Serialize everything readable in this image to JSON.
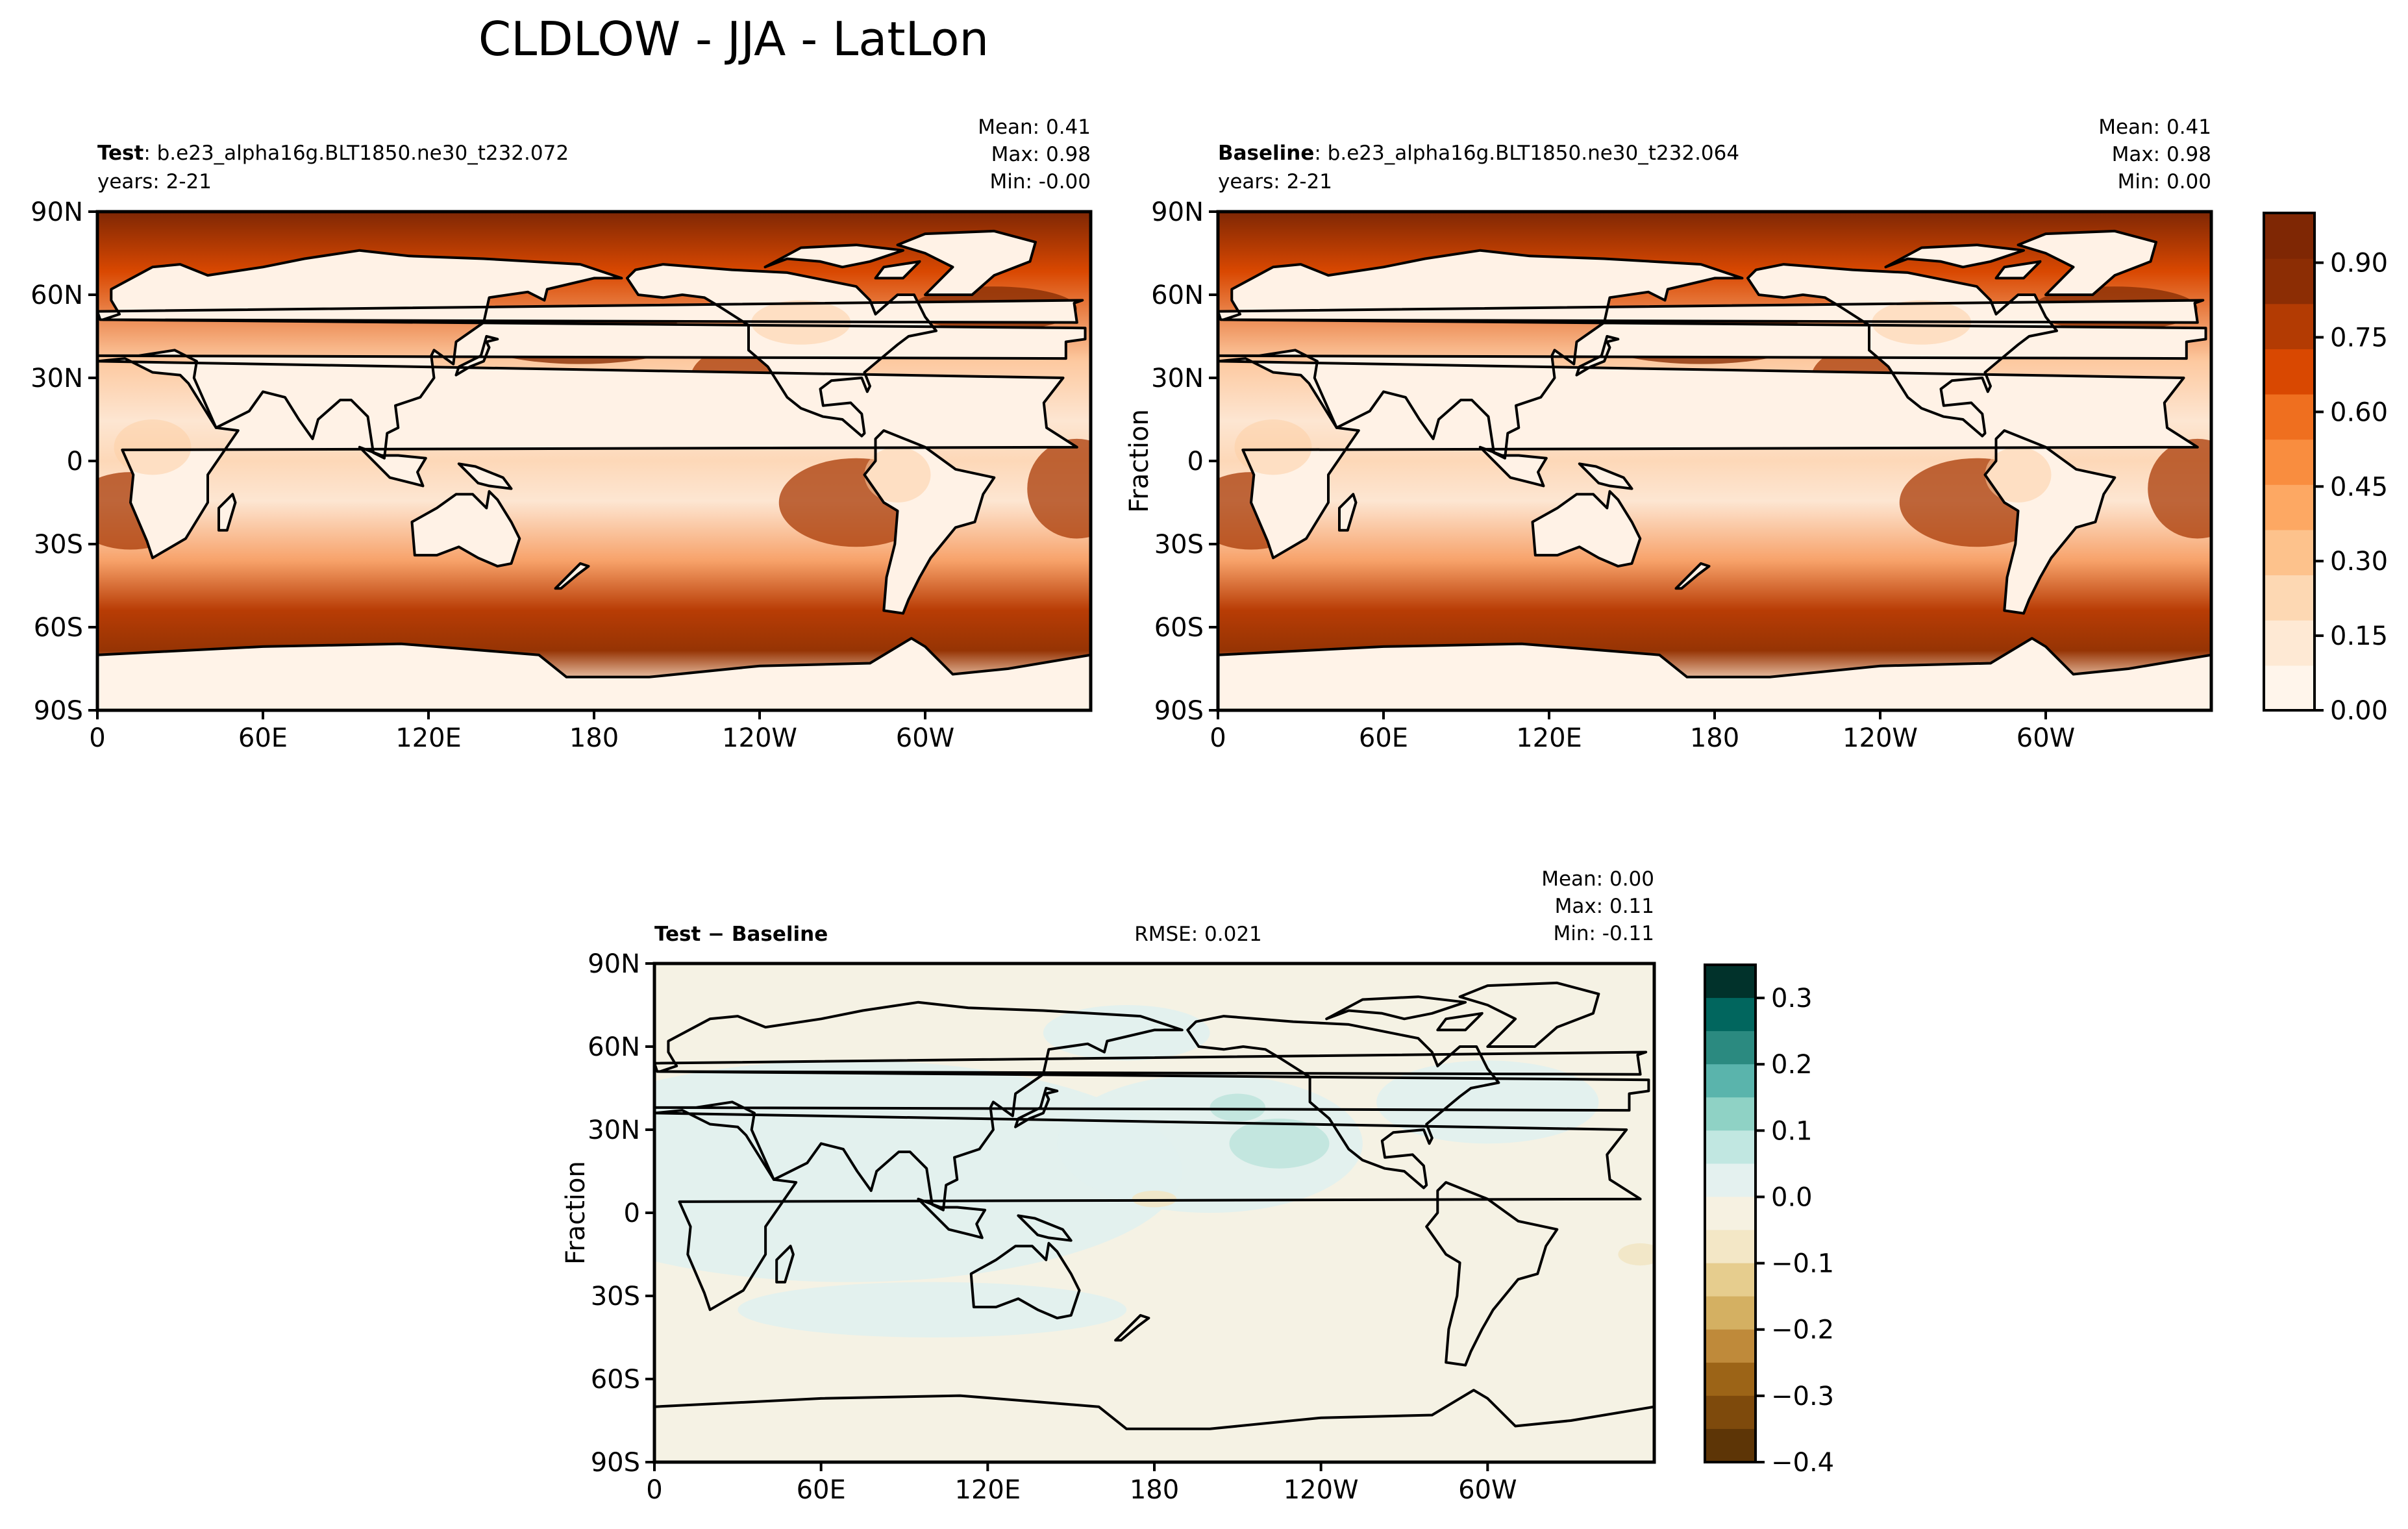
{
  "figure_title": "CLDLOW - JJA - LatLon",
  "chart_data": [
    {
      "type": "heatmap",
      "id": "test",
      "label_bold": "Test",
      "label_rest": ": b.e23_alpha16g.BLT1850.ne30_t232.072",
      "years": "years: 2-21",
      "stats": [
        "Mean:  0.41",
        "Max:  0.98",
        "Min: -0.00"
      ],
      "ylabel": "",
      "xticks": [
        "0",
        "60E",
        "120E",
        "180",
        "120W",
        "60W"
      ],
      "yticks": [
        "90N",
        "60N",
        "30N",
        "0",
        "30S",
        "60S",
        "90S"
      ],
      "xlim": [
        0,
        360
      ],
      "ylim": [
        -90,
        90
      ],
      "colormap": "Oranges",
      "value_range": [
        0,
        1
      ]
    },
    {
      "type": "heatmap",
      "id": "baseline",
      "label_bold": "Baseline",
      "label_rest": ": b.e23_alpha16g.BLT1850.ne30_t232.064",
      "years": "years: 2-21",
      "stats": [
        "Mean:  0.41",
        "Max:  0.98",
        "Min:  0.00"
      ],
      "ylabel": "Fraction",
      "xticks": [
        "0",
        "60E",
        "120E",
        "180",
        "120W",
        "60W"
      ],
      "yticks": [
        "90N",
        "60N",
        "30N",
        "0",
        "30S",
        "60S",
        "90S"
      ],
      "xlim": [
        0,
        360
      ],
      "ylim": [
        -90,
        90
      ],
      "colormap": "Oranges",
      "value_range": [
        0,
        1
      ]
    },
    {
      "type": "heatmap",
      "id": "diff",
      "label_bold": "Test − Baseline",
      "rmse": "RMSE: 0.021",
      "stats": [
        "Mean:  0.00",
        "Max:  0.11",
        "Min: -0.11"
      ],
      "ylabel": "Fraction",
      "xticks": [
        "0",
        "60E",
        "120E",
        "180",
        "120W",
        "60W"
      ],
      "yticks": [
        "90N",
        "60N",
        "30N",
        "0",
        "30S",
        "60S",
        "90S"
      ],
      "xlim": [
        0,
        360
      ],
      "ylim": [
        -90,
        90
      ],
      "colormap": "BrBG",
      "value_range": [
        -0.4,
        0.35
      ]
    }
  ],
  "colorbars": {
    "top": {
      "ticks": [
        "0.00",
        "0.15",
        "0.30",
        "0.45",
        "0.60",
        "0.75",
        "0.90"
      ],
      "tick_values": [
        0.0,
        0.15,
        0.3,
        0.45,
        0.6,
        0.75,
        0.9
      ],
      "range": [
        0,
        1
      ],
      "colors": [
        "#fff5eb",
        "#fee9d4",
        "#fdd8b3",
        "#fdc28c",
        "#fda863",
        "#f98d3f",
        "#ef6f1f",
        "#d94801",
        "#b33b03",
        "#8c2d04",
        "#7f2704"
      ]
    },
    "diff": {
      "ticks": [
        "0.3",
        "0.2",
        "0.1",
        "0.0",
        "−0.1",
        "−0.2",
        "−0.3",
        "−0.4"
      ],
      "tick_values": [
        0.3,
        0.2,
        0.1,
        0.0,
        -0.1,
        -0.2,
        -0.3,
        -0.4
      ],
      "range": [
        -0.4,
        0.35
      ],
      "colors": [
        "#01322b",
        "#01665e",
        "#2b8a80",
        "#5ab4ac",
        "#8fd2c5",
        "#c1e7e1",
        "#e4f1ef",
        "#f6f1e1",
        "#f3e7c6",
        "#e6cd8e",
        "#d4b062",
        "#bf8a3a",
        "#9c6417",
        "#7e4a0c",
        "#5d3506"
      ]
    }
  },
  "colors": {
    "sea_dark": "#8a2f05",
    "land_light": "#fff2e6",
    "diff_bg": "#f5f2e4",
    "diff_teal": "#e2f0ee",
    "coast": "#000000"
  }
}
